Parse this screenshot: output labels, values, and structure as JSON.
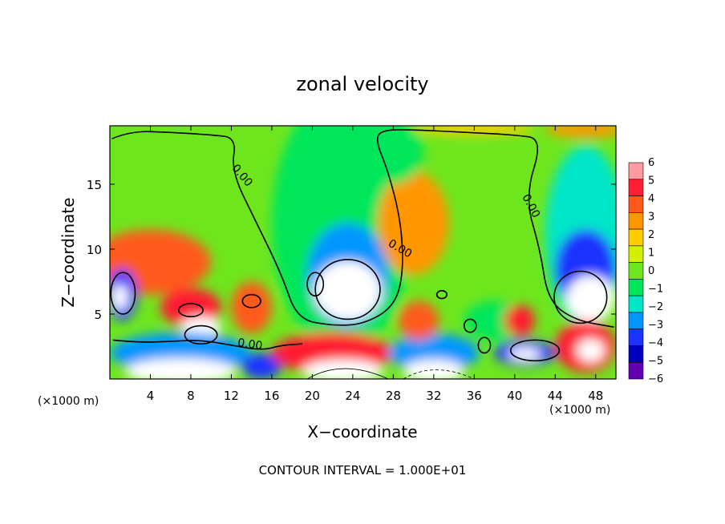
{
  "chart_data": {
    "type": "heatmap",
    "title": "zonal velocity",
    "xlabel": "X−coordinate",
    "ylabel": "Z−coordinate",
    "x_unit": "(×1000 m)",
    "y_unit": "(×1000 m)",
    "xlim": [
      0,
      50
    ],
    "ylim": [
      0,
      19.5
    ],
    "xticks": [
      4,
      8,
      12,
      16,
      20,
      24,
      28,
      32,
      36,
      40,
      44,
      48
    ],
    "xtick_labels": [
      "4",
      "8",
      "12",
      "16",
      "20",
      "24",
      "28",
      "32",
      "36",
      "40",
      "44",
      "48"
    ],
    "yticks": [
      5,
      10,
      15
    ],
    "ytick_labels": [
      "5",
      "10",
      "15"
    ],
    "colorbar": {
      "min": -6,
      "max": 6,
      "levels": [
        6,
        5,
        4,
        3,
        2,
        1,
        0,
        -1,
        -2,
        -3,
        -4,
        -5,
        -6
      ],
      "labels": [
        "6",
        "5",
        "4",
        "3",
        "2",
        "1",
        "0",
        "−1",
        "−2",
        "−3",
        "−4",
        "−5",
        "−6"
      ],
      "colors": [
        "#ff9aa0",
        "#ff1e32",
        "#ff5a1e",
        "#ff9600",
        "#ffcd00",
        "#d2f000",
        "#6ee61e",
        "#00e65a",
        "#00e6c8",
        "#0096ff",
        "#1e32ff",
        "#0000be",
        "#6400b4"
      ]
    },
    "field_blobs": [
      {
        "x": 23,
        "y": 12,
        "rx": 7,
        "ry": 10,
        "value": -1.5
      },
      {
        "x": 23.5,
        "y": 8,
        "rx": 4,
        "ry": 4,
        "value": -3.5
      },
      {
        "x": 23.5,
        "y": 6.8,
        "rx": 3.3,
        "ry": 2.3,
        "value": -6.5
      },
      {
        "x": 30,
        "y": 12,
        "rx": 3.5,
        "ry": 4,
        "value": 3
      },
      {
        "x": 28,
        "y": 17.5,
        "rx": 3,
        "ry": 2.5,
        "value": -1.5
      },
      {
        "x": 47,
        "y": 11,
        "rx": 4,
        "ry": 7,
        "value": -2
      },
      {
        "x": 47,
        "y": 8.5,
        "rx": 3,
        "ry": 3,
        "value": -4
      },
      {
        "x": 47.5,
        "y": 6.2,
        "rx": 2.4,
        "ry": 1.8,
        "value": -6.5
      },
      {
        "x": 4,
        "y": 9,
        "rx": 6,
        "ry": 2.5,
        "value": 3.5
      },
      {
        "x": 8,
        "y": 5.5,
        "rx": 3,
        "ry": 1.5,
        "value": 4.5
      },
      {
        "x": 14,
        "y": 5.5,
        "rx": 2,
        "ry": 2,
        "value": 4
      },
      {
        "x": 9,
        "y": 4,
        "rx": 2,
        "ry": 0.8,
        "value": 6.5
      },
      {
        "x": 1.2,
        "y": 6.5,
        "rx": 1.5,
        "ry": 2,
        "value": -4.5
      },
      {
        "x": 1,
        "y": 6.3,
        "rx": 0.8,
        "ry": 1,
        "value": -6.5
      },
      {
        "x": 7,
        "y": 2,
        "rx": 7,
        "ry": 1.6,
        "value": -3
      },
      {
        "x": 7,
        "y": 0.6,
        "rx": 5.5,
        "ry": 1,
        "value": -6.5
      },
      {
        "x": 15,
        "y": 1,
        "rx": 2,
        "ry": 1,
        "value": -4
      },
      {
        "x": 22,
        "y": 2,
        "rx": 6,
        "ry": 1.6,
        "value": 4.5
      },
      {
        "x": 23,
        "y": 0.6,
        "rx": 4,
        "ry": 0.9,
        "value": 6.5
      },
      {
        "x": 32,
        "y": 2,
        "rx": 4.5,
        "ry": 1.5,
        "value": -3
      },
      {
        "x": 32,
        "y": 0.6,
        "rx": 3,
        "ry": 0.9,
        "value": -6.5
      },
      {
        "x": 30.5,
        "y": 4.5,
        "rx": 2,
        "ry": 1.5,
        "value": 3.5
      },
      {
        "x": 38,
        "y": 4.5,
        "rx": 3,
        "ry": 1.5,
        "value": -1.5
      },
      {
        "x": 40.5,
        "y": 4.5,
        "rx": 1.5,
        "ry": 1.2,
        "value": 4.5
      },
      {
        "x": 41,
        "y": 2,
        "rx": 3,
        "ry": 1,
        "value": -4
      },
      {
        "x": 41,
        "y": 1.9,
        "rx": 1.6,
        "ry": 0.5,
        "value": -6.5
      },
      {
        "x": 47,
        "y": 2.5,
        "rx": 3,
        "ry": 2,
        "value": 4.5
      },
      {
        "x": 47.5,
        "y": 2.2,
        "rx": 1.4,
        "ry": 0.9,
        "value": 6.5
      },
      {
        "x": 36,
        "y": 19.3,
        "rx": 6,
        "ry": 0.5,
        "value": 1.5
      },
      {
        "x": 47,
        "y": 19.2,
        "rx": 4,
        "ry": 0.6,
        "value": 3
      }
    ],
    "contours": [
      {
        "level": 0,
        "label": "0.00",
        "points": [
          [
            0.2,
            18.5
          ],
          [
            2,
            19.1
          ],
          [
            6,
            19
          ],
          [
            10,
            18.8
          ],
          [
            12.5,
            18.6
          ],
          [
            12,
            16
          ],
          [
            14.5,
            12
          ],
          [
            17,
            8
          ],
          [
            18.5,
            4.6
          ],
          [
            22,
            4.1
          ],
          [
            25,
            4.2
          ],
          [
            28,
            5.5
          ],
          [
            29,
            8
          ],
          [
            28.8,
            12
          ],
          [
            27.5,
            16
          ],
          [
            26.2,
            18.5
          ],
          [
            27,
            19.2
          ],
          [
            30,
            19.2
          ],
          [
            35,
            19
          ],
          [
            40,
            18.8
          ],
          [
            42.8,
            18.5
          ],
          [
            41,
            14
          ],
          [
            42.5,
            10
          ],
          [
            43.3,
            6
          ],
          [
            46,
            4.5
          ],
          [
            49.8,
            4
          ]
        ]
      },
      {
        "level": 0,
        "label": "0.00",
        "points": [
          [
            0.3,
            3
          ],
          [
            3,
            2.8
          ],
          [
            6,
            2.9
          ],
          [
            9,
            3
          ],
          [
            12,
            2.6
          ],
          [
            15,
            2.2
          ],
          [
            17,
            2.6
          ],
          [
            19,
            2.7
          ]
        ]
      }
    ],
    "contour_labels": [
      {
        "text": "0.00",
        "x": 12.8,
        "y": 15.5,
        "angle": 50
      },
      {
        "text": "0.00",
        "x": 28.5,
        "y": 9.8,
        "angle": 30
      },
      {
        "text": "0.00",
        "x": 41.3,
        "y": 13.2,
        "angle": 62
      },
      {
        "text": "0.00",
        "x": 13.8,
        "y": 2.4,
        "angle": 8
      }
    ]
  },
  "footer": {
    "contour_interval": "CONTOUR INTERVAL = 1.000E+01"
  }
}
